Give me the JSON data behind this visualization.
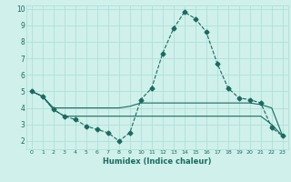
{
  "xlabel": "Humidex (Indice chaleur)",
  "xlim": [
    -0.5,
    23.5
  ],
  "ylim": [
    1.5,
    10.2
  ],
  "yticks": [
    2,
    3,
    4,
    5,
    6,
    7,
    8,
    9,
    10
  ],
  "xticks": [
    0,
    1,
    2,
    3,
    4,
    5,
    6,
    7,
    8,
    9,
    10,
    11,
    12,
    13,
    14,
    15,
    16,
    17,
    18,
    19,
    20,
    21,
    22,
    23
  ],
  "bg_color": "#cff0eb",
  "line_color": "#1a6b5e",
  "grid_color": "#aaddd6",
  "line1_x": [
    0,
    1,
    2,
    3,
    4,
    5,
    6,
    7,
    8,
    9,
    10,
    11,
    12,
    13,
    14,
    15,
    16,
    17,
    18,
    19,
    20,
    21,
    22,
    23
  ],
  "line1_y": [
    5.0,
    4.7,
    3.9,
    3.5,
    3.3,
    2.9,
    2.7,
    2.5,
    2.0,
    2.5,
    4.5,
    5.2,
    7.3,
    8.8,
    9.8,
    9.4,
    8.6,
    6.7,
    5.2,
    4.6,
    4.5,
    4.3,
    2.8,
    2.3
  ],
  "line2_x": [
    0,
    1,
    2,
    3,
    4,
    5,
    6,
    7,
    8,
    9,
    10,
    11,
    12,
    13,
    14,
    15,
    16,
    17,
    18,
    19,
    20,
    21,
    22,
    23
  ],
  "line2_y": [
    5.0,
    4.7,
    4.0,
    4.0,
    4.0,
    4.0,
    4.0,
    4.0,
    4.0,
    4.1,
    4.3,
    4.3,
    4.3,
    4.3,
    4.3,
    4.3,
    4.3,
    4.3,
    4.3,
    4.3,
    4.3,
    4.2,
    4.0,
    2.3
  ],
  "line3_x": [
    0,
    1,
    2,
    3,
    4,
    5,
    6,
    7,
    8,
    9,
    10,
    11,
    12,
    13,
    14,
    15,
    16,
    17,
    18,
    19,
    20,
    21,
    22,
    23
  ],
  "line3_y": [
    5.0,
    4.7,
    3.9,
    3.5,
    3.5,
    3.5,
    3.5,
    3.5,
    3.5,
    3.5,
    3.5,
    3.5,
    3.5,
    3.5,
    3.5,
    3.5,
    3.5,
    3.5,
    3.5,
    3.5,
    3.5,
    3.5,
    3.0,
    2.3
  ]
}
